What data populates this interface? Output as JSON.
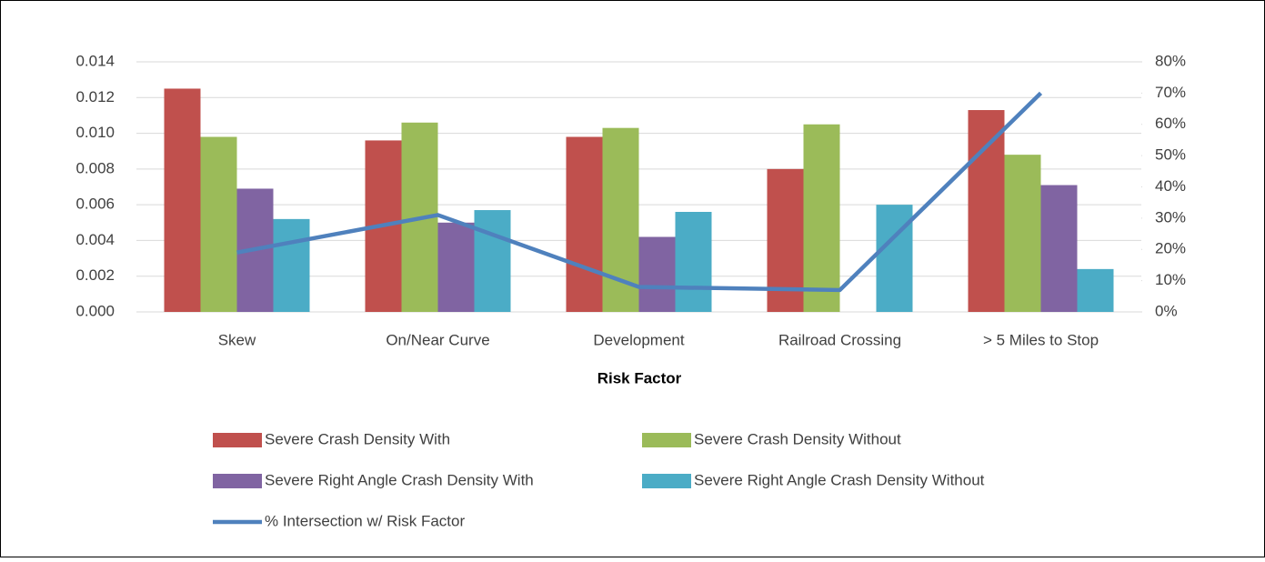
{
  "chart_data": {
    "type": "bar",
    "x_label": "Risk Factor",
    "categories": [
      "Skew",
      "On/Near Curve",
      "Development",
      "Railroad Crossing",
      "> 5 Miles to Stop"
    ],
    "series": [
      {
        "name": "Severe Crash Density With",
        "color": "#c0504d",
        "values": [
          0.0125,
          0.0096,
          0.0098,
          0.008,
          0.0113
        ]
      },
      {
        "name": "Severe Crash Density Without",
        "color": "#9bbb59",
        "values": [
          0.0098,
          0.0106,
          0.0103,
          0.0105,
          0.0088
        ]
      },
      {
        "name": "Severe Right Angle Crash Density With",
        "color": "#8064a2",
        "values": [
          0.0069,
          0.005,
          0.0042,
          null,
          0.0071
        ]
      },
      {
        "name": "Severe Right Angle Crash Density Without",
        "color": "#4bacc6",
        "values": [
          0.0052,
          0.0057,
          0.0056,
          0.006,
          0.0024
        ]
      },
      {
        "name": "% Intersection w/ Risk Factor",
        "color": "#4f81bd",
        "type": "line",
        "axis": "y2",
        "values": [
          19,
          31,
          8,
          7,
          70
        ]
      }
    ],
    "ylim": [
      0,
      0.014
    ],
    "yticks": [
      {
        "value": 0,
        "label": "0.000"
      },
      {
        "value": 0.002,
        "label": "0.002"
      },
      {
        "value": 0.004,
        "label": "0.004"
      },
      {
        "value": 0.006,
        "label": "0.006"
      },
      {
        "value": 0.008,
        "label": "0.008"
      },
      {
        "value": 0.01,
        "label": "0.010"
      },
      {
        "value": 0.012,
        "label": "0.012"
      },
      {
        "value": 0.014,
        "label": "0.014"
      }
    ],
    "y2lim": [
      0,
      80
    ],
    "y2ticks": [
      {
        "value": 0,
        "label": "0%"
      },
      {
        "value": 10,
        "label": "10%"
      },
      {
        "value": 20,
        "label": "20%"
      },
      {
        "value": 30,
        "label": "30%"
      },
      {
        "value": 40,
        "label": "40%"
      },
      {
        "value": 50,
        "label": "50%"
      },
      {
        "value": 60,
        "label": "60%"
      },
      {
        "value": 70,
        "label": "70%"
      },
      {
        "value": 80,
        "label": "80%"
      }
    ],
    "grid": true,
    "legend": "bottom"
  }
}
